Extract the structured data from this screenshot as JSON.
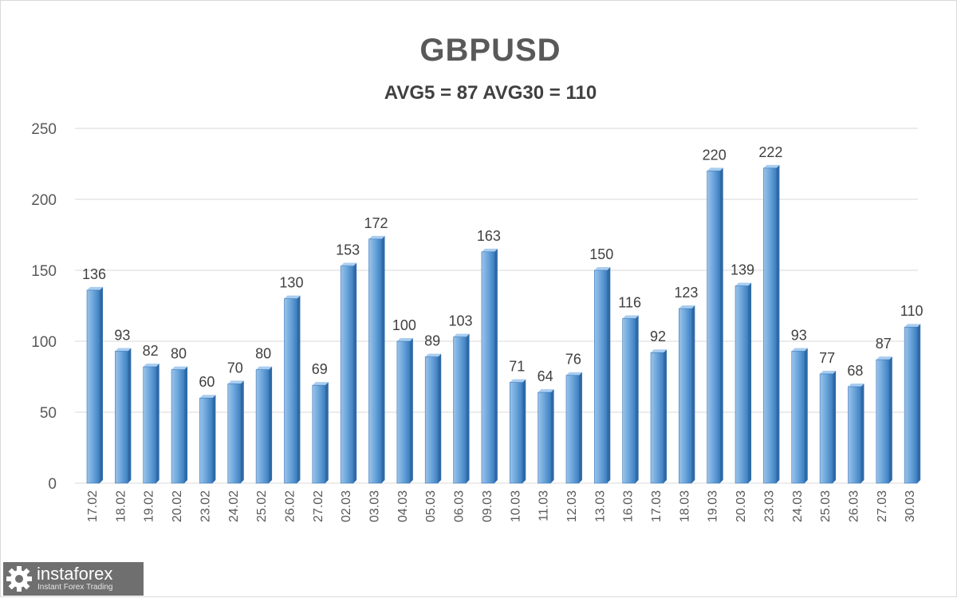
{
  "chart_data": {
    "type": "bar",
    "title": "GBPUSD",
    "subtitle": "AVG5 = 87 AVG30 = 110",
    "xlabel": "",
    "ylabel": "",
    "ylim": [
      0,
      250
    ],
    "yticks": [
      0,
      50,
      100,
      150,
      200,
      250
    ],
    "grid": true,
    "legend": "none",
    "bar_color": "#5b9bd5",
    "categories": [
      "17.02",
      "18.02",
      "19.02",
      "20.02",
      "23.02",
      "24.02",
      "25.02",
      "26.02",
      "27.02",
      "02.03",
      "03.03",
      "04.03",
      "05.03",
      "06.03",
      "09.03",
      "10.03",
      "11.03",
      "12.03",
      "13.03",
      "16.03",
      "17.03",
      "18.03",
      "19.03",
      "20.03",
      "23.03",
      "24.03",
      "25.03",
      "26.03",
      "27.03",
      "30.03"
    ],
    "values": [
      136,
      93,
      82,
      80,
      60,
      70,
      80,
      130,
      69,
      153,
      172,
      100,
      89,
      103,
      163,
      71,
      64,
      76,
      150,
      116,
      92,
      123,
      220,
      139,
      222,
      93,
      77,
      68,
      87,
      110
    ]
  },
  "logo": {
    "name": "instaforex",
    "tagline": "Instant Forex Trading",
    "icon": "gear-icon"
  }
}
